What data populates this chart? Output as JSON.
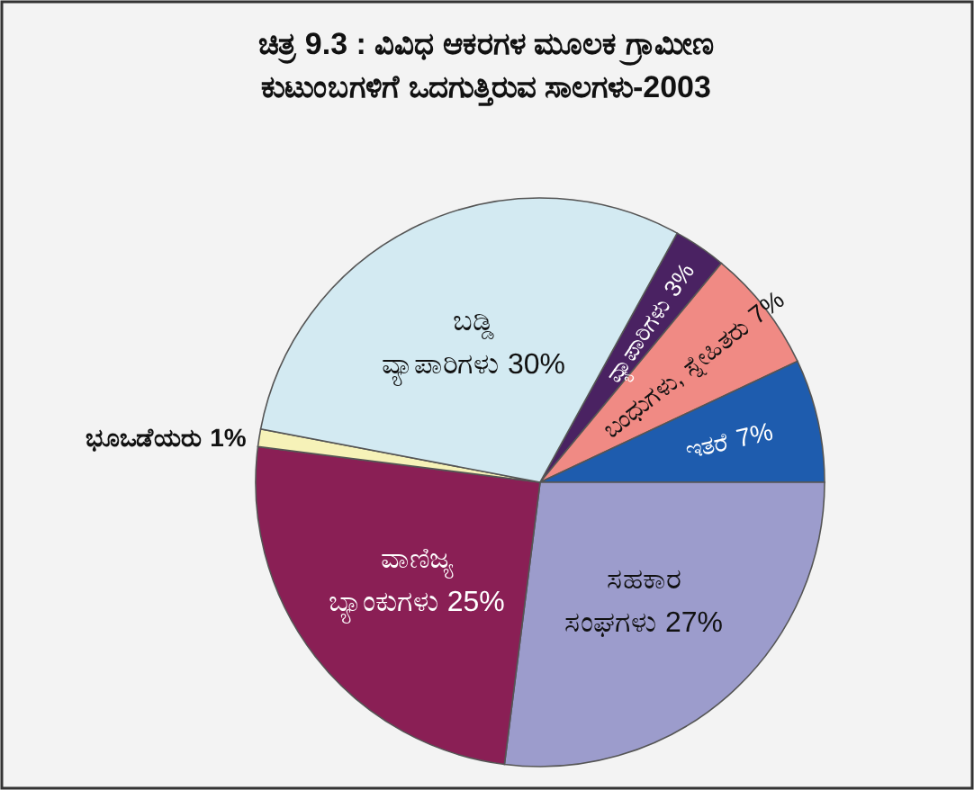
{
  "chart_data": {
    "type": "pie",
    "title": "ಚಿತ್ರ 9.3 : ವಿವಿಧ ಆಕರಗಳ ಮೂಲಕ ಗ್ರಾಮೀಣ ಕುಟುಂಬಗಳಿಗೆ ಒದಗುತ್ತಿರುವ ಸಾಲಗಳು-2003",
    "categories": [
      "ವ್ಯಾಪಾರಿಗಳು",
      "ಬಂಧುಗಳು, ಸ್ನೇಹಿತರು",
      "ಇತರೆ",
      "ಸಹಕಾರ ಸಂಘಗಳು",
      "ವಾಣಿಜ್ಯ ಬ್ಯಾಂಕುಗಳು",
      "ಭೂಒಡೆಯರು",
      "ಬಡ್ಡಿ ವ್ಯಾಪಾರಿಗಳು"
    ],
    "values": [
      3,
      7,
      7,
      27,
      25,
      1,
      30
    ],
    "colors": [
      "#4a2262",
      "#f08a84",
      "#1e5cae",
      "#9c9ccc",
      "#8a1f55",
      "#f6f2b8",
      "#d3eaf2"
    ],
    "value_labels": [
      "3%",
      "7%",
      "7%",
      "27%",
      "25%",
      "1%",
      "30%"
    ]
  }
}
